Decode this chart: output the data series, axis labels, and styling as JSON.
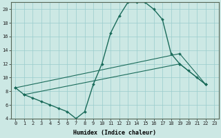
{
  "xlabel": "Humidex (Indice chaleur)",
  "bg_color": "#cce8e4",
  "grid_color": "#99cccc",
  "line_color": "#1a6b5a",
  "xmin": -0.5,
  "xmax": 23.5,
  "ymin": 4,
  "ymax": 21,
  "line1_x": [
    0,
    1,
    2,
    3,
    4,
    5,
    6,
    7,
    8,
    9,
    10,
    11,
    12,
    13,
    14,
    15,
    16,
    17,
    18,
    19,
    20,
    21,
    22
  ],
  "line1_y": [
    8.5,
    7.5,
    7.0,
    6.5,
    6.0,
    5.5,
    5.0,
    4.0,
    5.0,
    9.0,
    12.0,
    16.5,
    19.0,
    21.0,
    21.0,
    21.0,
    20.0,
    18.5,
    13.5,
    12.0,
    11.0,
    10.0,
    9.0
  ],
  "line2_x": [
    0,
    19,
    22
  ],
  "line2_y": [
    8.5,
    13.5,
    9.0
  ],
  "line3_x": [
    1,
    19,
    22
  ],
  "line3_y": [
    7.5,
    12.0,
    9.0
  ],
  "yticks": [
    4,
    6,
    8,
    10,
    12,
    14,
    16,
    18,
    20
  ],
  "xticks": [
    0,
    1,
    2,
    3,
    4,
    5,
    6,
    7,
    8,
    9,
    10,
    11,
    12,
    13,
    14,
    15,
    16,
    17,
    18,
    19,
    20,
    21,
    22,
    23
  ],
  "xlabel_fontsize": 6.0,
  "tick_fontsize": 5.0,
  "linewidth1": 1.0,
  "linewidth2": 0.8,
  "markersize": 2.0
}
